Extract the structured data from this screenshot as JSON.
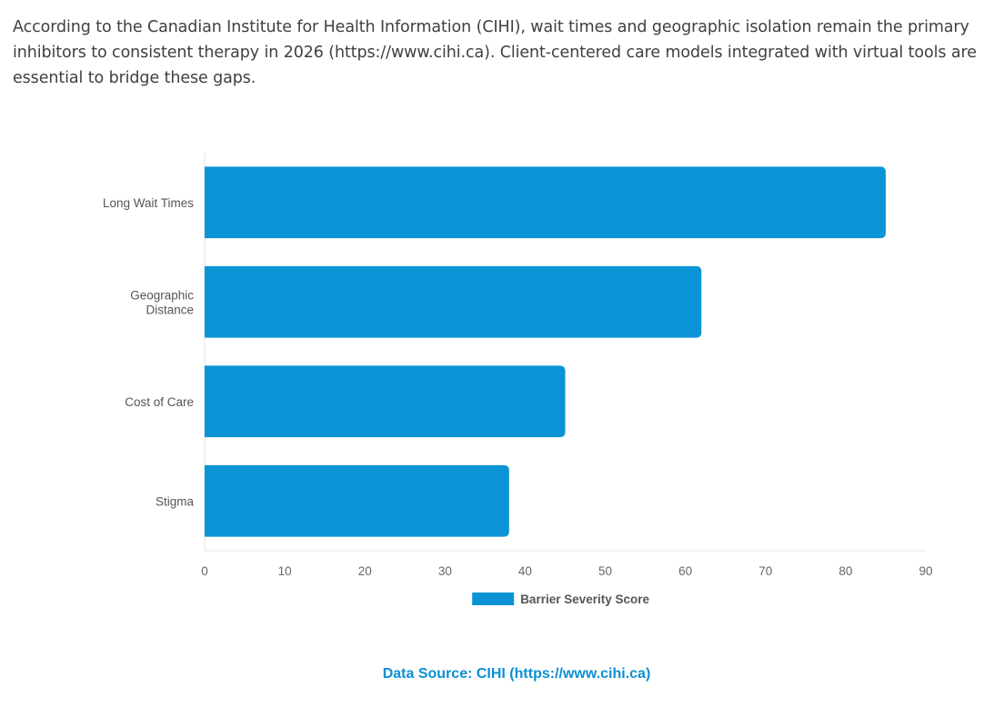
{
  "intro_text": "According to the Canadian Institute for Health Information (CIHI), wait times and geographic isolation remain the primary inhibitors to consistent therapy in 2026 (https://www.cihi.ca). Client-centered care models integrated with virtual tools are essential to bridge these gaps.",
  "chart_data": {
    "type": "bar",
    "orientation": "horizontal",
    "categories": [
      [
        "Long Wait Times"
      ],
      [
        "Geographic",
        "Distance"
      ],
      [
        "Cost of Care"
      ],
      [
        "Stigma"
      ]
    ],
    "series": [
      {
        "name": "Barrier Severity Score",
        "values": [
          85,
          62,
          45,
          38
        ],
        "color": "#0a94d6"
      }
    ],
    "xlim": [
      0,
      90
    ],
    "xticks": [
      0,
      10,
      20,
      30,
      40,
      50,
      60,
      70,
      80,
      90
    ],
    "legend_position": "bottom-center",
    "grid": false
  },
  "source_text": "Data Source: CIHI (https://www.cihi.ca)"
}
